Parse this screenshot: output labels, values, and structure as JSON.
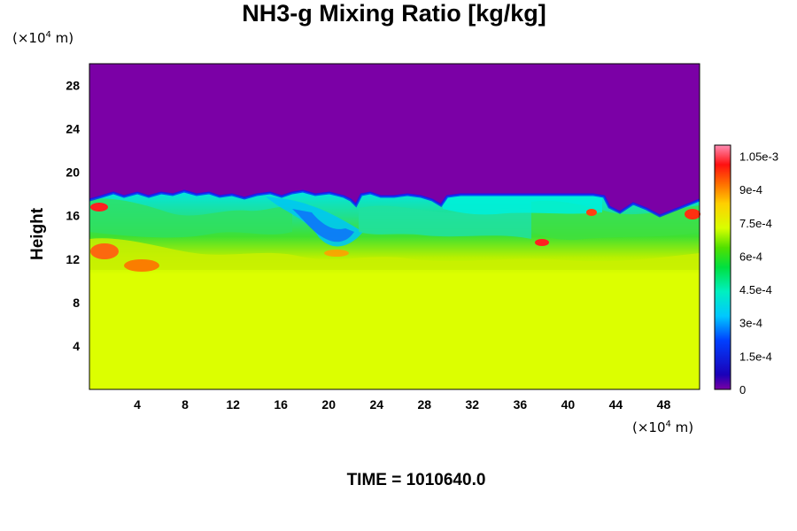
{
  "header": {
    "title": "NH3-g Mixing Ratio [kg/kg]",
    "y_unit_prefix": "(×10",
    "y_unit_exp": "4",
    "y_unit_suffix": " m)",
    "x_unit_prefix": "(×10",
    "x_unit_exp": "4",
    "x_unit_suffix": " m)",
    "ylabel": "Height"
  },
  "footer": {
    "time_label": "TIME = 1010640.0"
  },
  "colors": {
    "upper_layer": "#7b00a6",
    "lower_layer": "#dcff00"
  },
  "chart_data": {
    "type": "heatmap",
    "title": "NH3-g Mixing Ratio [kg/kg]",
    "xlabel": "",
    "ylabel": "Height",
    "x_ticks": [
      "4",
      "8",
      "12",
      "16",
      "20",
      "24",
      "28",
      "32",
      "36",
      "40",
      "44",
      "48"
    ],
    "x_tick_values": [
      4,
      8,
      12,
      16,
      20,
      24,
      28,
      32,
      36,
      40,
      44,
      48
    ],
    "y_ticks": [
      "4",
      "8",
      "12",
      "16",
      "20",
      "24",
      "28"
    ],
    "y_tick_values": [
      4,
      8,
      12,
      16,
      20,
      24,
      28
    ],
    "xlim": [
      0,
      51
    ],
    "ylim": [
      0,
      30
    ],
    "colorbar": {
      "range": [
        0,
        0.0011
      ],
      "tick_labels": [
        "0",
        "1.5e-4",
        "3e-4",
        "4.5e-4",
        "6e-4",
        "7.5e-4",
        "9e-4",
        "1.05e-3"
      ],
      "tick_values": [
        0,
        0.00015,
        0.0003,
        0.00045,
        0.0006,
        0.00075,
        0.0009,
        0.00105
      ],
      "colormap": "rainbow (purple → blue → cyan → green → yellow → red → pink)"
    },
    "field_summary": {
      "upper_region_value": 0,
      "upper_region_height_range": [
        18,
        30
      ],
      "lower_region_value": 0.0007,
      "lower_region_height_range": [
        0,
        11
      ],
      "mixed_layer_height_range": [
        11,
        18
      ]
    }
  }
}
